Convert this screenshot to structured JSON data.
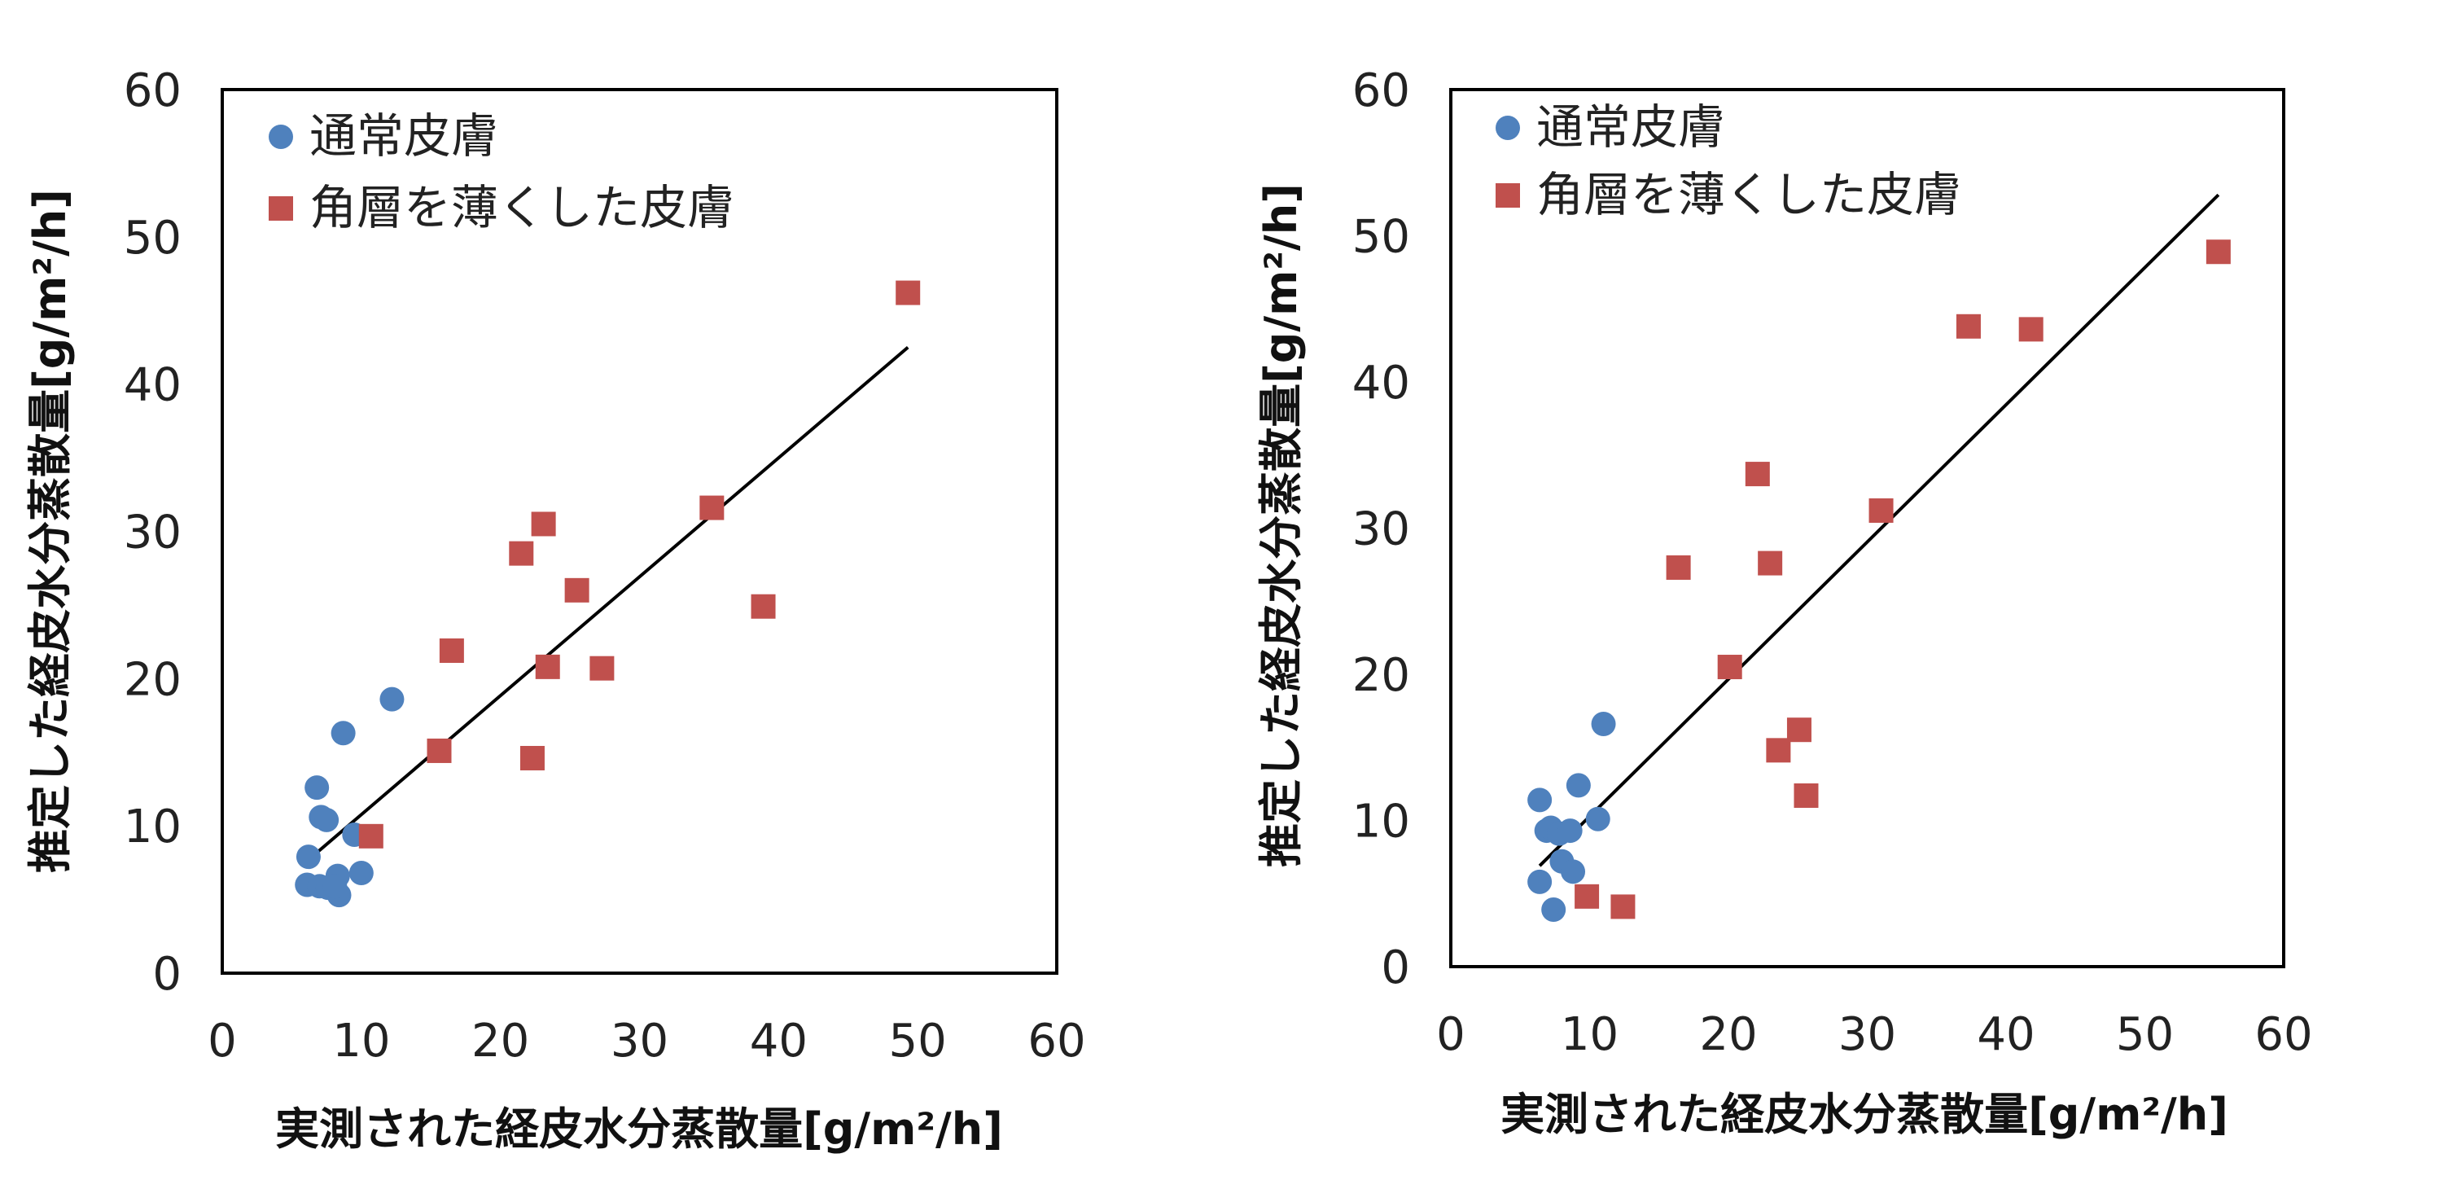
{
  "colors": {
    "normal": "#4f81bd",
    "thinned": "#c0504d",
    "trend": "#000000"
  },
  "chart_data": [
    {
      "type": "scatter",
      "xlabel": "実測された経皮水分蒸散量[g/m²/h]",
      "ylabel": "推定した経皮水分蒸散量[g/m²/h]",
      "xlim": [
        0,
        60
      ],
      "ylim": [
        0,
        60
      ],
      "xticks": [
        "0",
        "10",
        "20",
        "30",
        "40",
        "50",
        "60"
      ],
      "yticks": [
        "0",
        "10",
        "20",
        "30",
        "40",
        "50",
        "60"
      ],
      "legend_position": "top-left",
      "series": [
        {
          "name": "通常皮膚",
          "marker": "circle",
          "points": [
            [
              6.2,
              7.9
            ],
            [
              6.8,
              12.6
            ],
            [
              7.1,
              10.6
            ],
            [
              7.5,
              10.4
            ],
            [
              8.7,
              16.3
            ],
            [
              12.2,
              18.6
            ],
            [
              9.5,
              9.4
            ],
            [
              6.1,
              6.0
            ],
            [
              7.0,
              5.9
            ],
            [
              7.6,
              5.8
            ],
            [
              8.3,
              6.6
            ],
            [
              8.4,
              5.3
            ],
            [
              8.1,
              5.9
            ],
            [
              10.0,
              6.8
            ]
          ]
        },
        {
          "name": "角層を薄くした皮膚",
          "marker": "square",
          "points": [
            [
              10.7,
              9.3
            ],
            [
              15.6,
              15.1
            ],
            [
              16.5,
              21.9
            ],
            [
              21.5,
              28.5
            ],
            [
              23.1,
              30.5
            ],
            [
              23.4,
              20.8
            ],
            [
              25.5,
              26.0
            ],
            [
              22.3,
              14.6
            ],
            [
              27.3,
              20.7
            ],
            [
              35.2,
              31.6
            ],
            [
              38.9,
              24.9
            ],
            [
              49.3,
              46.2
            ]
          ]
        }
      ],
      "trendline": {
        "x": [
          6.2,
          49.3
        ],
        "y": [
          7.7,
          42.5
        ]
      }
    },
    {
      "type": "scatter",
      "xlabel": "実測された経皮水分蒸散量[g/m²/h]",
      "ylabel": "推定した経皮水分蒸散量[g/m²/h]",
      "xlim": [
        0,
        60
      ],
      "ylim": [
        0,
        60
      ],
      "xticks": [
        "0",
        "10",
        "20",
        "30",
        "40",
        "50",
        "60"
      ],
      "yticks": [
        "0",
        "10",
        "20",
        "30",
        "40",
        "50",
        "60"
      ],
      "legend_position": "top-left",
      "series": [
        {
          "name": "通常皮膚",
          "marker": "circle",
          "points": [
            [
              6.4,
              11.4
            ],
            [
              6.9,
              9.3
            ],
            [
              7.2,
              9.5
            ],
            [
              7.8,
              9.1
            ],
            [
              8.6,
              9.3
            ],
            [
              9.2,
              12.4
            ],
            [
              11.0,
              16.6
            ],
            [
              10.6,
              10.1
            ],
            [
              8.0,
              7.2
            ],
            [
              8.8,
              6.5
            ],
            [
              6.4,
              5.8
            ],
            [
              7.4,
              3.9
            ]
          ]
        },
        {
          "name": "角層を薄くした皮膚",
          "marker": "square",
          "points": [
            [
              9.8,
              4.8
            ],
            [
              12.4,
              4.1
            ],
            [
              16.4,
              27.3
            ],
            [
              20.1,
              20.5
            ],
            [
              22.1,
              33.7
            ],
            [
              23.0,
              27.6
            ],
            [
              23.6,
              14.8
            ],
            [
              25.1,
              16.2
            ],
            [
              25.6,
              11.7
            ],
            [
              31.0,
              31.2
            ],
            [
              37.3,
              43.8
            ],
            [
              41.8,
              43.6
            ],
            [
              55.3,
              48.9
            ]
          ]
        }
      ],
      "trendline": {
        "x": [
          6.4,
          55.3
        ],
        "y": [
          6.9,
          52.8
        ]
      }
    }
  ]
}
